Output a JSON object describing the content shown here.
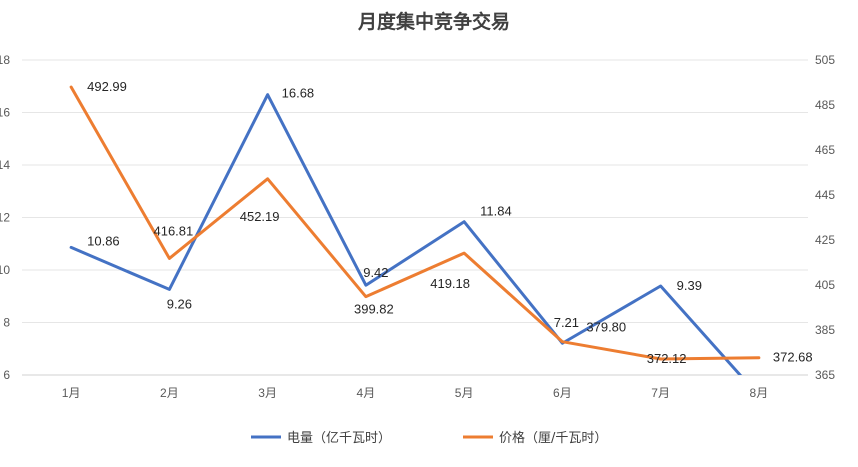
{
  "chart_data": {
    "type": "line",
    "title": "月度集中竞争交易",
    "categories": [
      "1月",
      "2月",
      "3月",
      "4月",
      "5月",
      "6月",
      "7月",
      "8月"
    ],
    "series": [
      {
        "name": "电量（亿千瓦时）",
        "axis": "left",
        "color": "#4472C4",
        "values": [
          10.86,
          9.26,
          16.68,
          9.42,
          11.84,
          7.21,
          9.39,
          5.2
        ],
        "labels": [
          "10.86",
          "9.26",
          "16.68",
          "9.42",
          "11.84",
          "7.21",
          "9.39",
          ""
        ]
      },
      {
        "name": "价格（厘/千瓦时）",
        "axis": "right",
        "color": "#ED7D31",
        "values": [
          492.99,
          416.81,
          452.19,
          399.82,
          419.18,
          379.8,
          372.12,
          372.68
        ],
        "labels": [
          "492.99",
          "416.81",
          "452.19",
          "399.82",
          "419.18",
          "379.80",
          "372.12",
          "372.68"
        ]
      }
    ],
    "y_left": {
      "min": 6,
      "max": 18,
      "step": 2,
      "ticks": [
        "6",
        "8",
        "10",
        "12",
        "14",
        "16",
        "18"
      ]
    },
    "y_right": {
      "min": 365,
      "max": 505,
      "step": 20,
      "ticks": [
        "365",
        "385",
        "405",
        "425",
        "445",
        "465",
        "485",
        "505"
      ]
    },
    "grid": true,
    "legend_position": "bottom"
  }
}
